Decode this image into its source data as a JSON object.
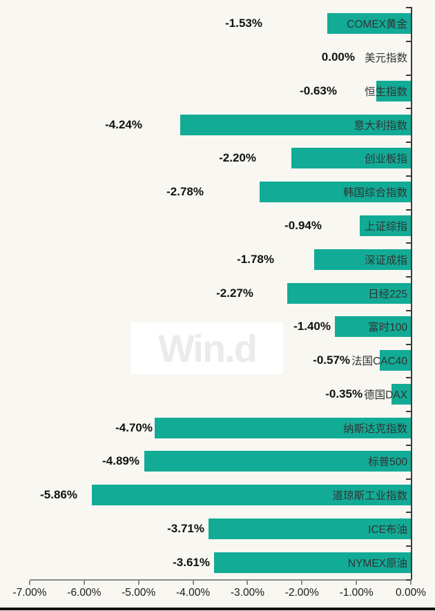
{
  "chart_data": {
    "type": "bar",
    "orientation": "horizontal",
    "title": "",
    "xlabel": "",
    "ylabel": "",
    "categories": [
      "COMEX黄金",
      "美元指数",
      "恒生指数",
      "意大利指数",
      "创业板指",
      "韩国综合指数",
      "上证综指",
      "深证成指",
      "日经225",
      "富时100",
      "法国CAC40",
      "德国DAX",
      "纳斯达克指数",
      "标普500",
      "道琼斯工业指数",
      "ICE布油",
      "NYMEX原油"
    ],
    "values": [
      -1.53,
      0.0,
      -0.63,
      -4.24,
      -2.2,
      -2.78,
      -0.94,
      -1.78,
      -2.27,
      -1.4,
      -0.57,
      -0.35,
      -4.7,
      -4.89,
      -5.86,
      -3.71,
      -3.61
    ],
    "value_labels": [
      "-1.53%",
      "0.00%",
      "-0.63%",
      "-4.24%",
      "-2.20%",
      "-2.78%",
      "-0.94%",
      "-1.78%",
      "-2.27%",
      "-1.40%",
      "-0.57%",
      "-0.35%",
      "-4.70%",
      "-4.89%",
      "-5.86%",
      "-3.71%",
      "-3.61%"
    ],
    "x_ticks": [
      "-7.00%",
      "-6.00%",
      "-5.00%",
      "-4.00%",
      "-3.00%",
      "-2.00%",
      "-1.00%",
      "0.00%"
    ],
    "xlim": [
      -7,
      0
    ],
    "grid": false,
    "legend_position": "none",
    "bar_color": "#12AB96"
  },
  "watermark": {
    "text": "Win.d"
  },
  "colors": {
    "background": "#F8F7F2",
    "bar": "#12AB96",
    "category_text": "#333333",
    "value_text": "#111111",
    "value_axis_line": "#8A8A8A",
    "category_axis_line": "#3A3A3A",
    "tick_label_text": "#1A1A1A",
    "watermark_background": "#FFFFFF",
    "watermark_text": "#EBEBEB",
    "bottom_border": "#111111"
  }
}
